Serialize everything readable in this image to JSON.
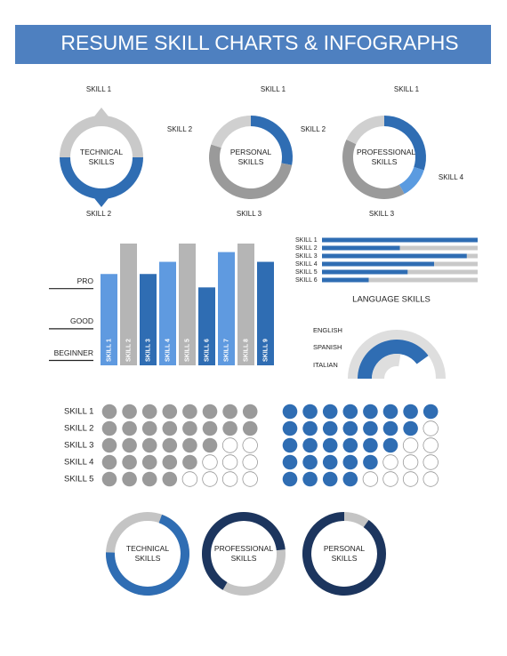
{
  "title": "RESUME SKILL CHARTS & INFOGRAPHS",
  "chart_data": [
    {
      "type": "donut",
      "label": "TECHNICAL SKILLS",
      "categories": [
        "SKILL 1",
        "SKILL 2"
      ],
      "values": [
        50,
        50
      ],
      "colors": [
        "#c9c9c9",
        "#2f6db3"
      ]
    },
    {
      "type": "donut",
      "label": "PERSONAL SKILLS",
      "categories": [
        "SKILL 1",
        "SKILL 3",
        "SKILL 2"
      ],
      "values": [
        28,
        52,
        20
      ],
      "colors": [
        "#2f6db3",
        "#9a9a9a",
        "#d0d0d0"
      ]
    },
    {
      "type": "donut",
      "label": "PROFESSIONAL SKILLS",
      "categories": [
        "SKILL 1",
        "SKILL 4",
        "SKILL 3",
        "SKILL 2"
      ],
      "values": [
        30,
        12,
        40,
        18
      ],
      "colors": [
        "#2f6db3",
        "#5b9be0",
        "#9a9a9a",
        "#d0d0d0"
      ]
    },
    {
      "type": "bar",
      "categories": [
        "SKILL 1",
        "SKILL 2",
        "SKILL 3",
        "SKILL 4",
        "SKILL 5",
        "SKILL 6",
        "SKILL 7",
        "SKILL 8",
        "SKILL 9"
      ],
      "values": [
        75,
        100,
        75,
        85,
        100,
        64,
        93,
        100,
        85
      ],
      "colors": [
        "#5f9ae0",
        "#b5b5b5",
        "#2f6db3",
        "#5f9ae0",
        "#b5b5b5",
        "#2f6db3",
        "#5f9ae0",
        "#b5b5b5",
        "#2f6db3"
      ],
      "ylim": [
        0,
        100
      ],
      "yticks": [
        {
          "value": 4,
          "label": "BEGINNER"
        },
        {
          "value": 30,
          "label": "GOOD"
        },
        {
          "value": 63,
          "label": "PRO"
        }
      ]
    },
    {
      "type": "hbar",
      "categories": [
        "SKILL 1",
        "SKILL 2",
        "SKILL 3",
        "SKILL 4",
        "SKILL 5",
        "SKILL 6"
      ],
      "values": [
        100,
        50,
        93,
        72,
        55,
        30
      ],
      "xlim": [
        0,
        100
      ],
      "color": "#2f6db3",
      "track_color": "#c9c9c9"
    },
    {
      "type": "semi-ring",
      "title": "LANGUAGE SKILLS",
      "categories": [
        "ENGLISH",
        "SPANISH",
        "ITALIAN"
      ],
      "values": [
        100,
        80,
        55
      ],
      "colors": [
        "#dedede",
        "#2f6db3",
        "#dedede"
      ],
      "xlim": [
        0,
        100
      ]
    },
    {
      "type": "dots",
      "categories": [
        "SKILL 1",
        "SKILL 2",
        "SKILL 3",
        "SKILL 4",
        "SKILL 5"
      ],
      "values": [
        8,
        8,
        6,
        5,
        4
      ],
      "xlim": [
        0,
        8
      ],
      "color": "#9a9a9a"
    },
    {
      "type": "dots",
      "values": [
        8,
        7,
        6,
        5,
        4
      ],
      "xlim": [
        0,
        8
      ],
      "color": "#2f6db3"
    },
    {
      "type": "rings",
      "categories": [
        "TECHNICAL SKILLS",
        "PROFESSIONAL SKILLS",
        "PERSONAL SKILLS"
      ],
      "values": [
        70,
        65,
        90
      ],
      "colors": [
        "#2f6db3",
        "#1c355e",
        "#1c355e"
      ],
      "track_color": "#c4c4c4"
    }
  ]
}
